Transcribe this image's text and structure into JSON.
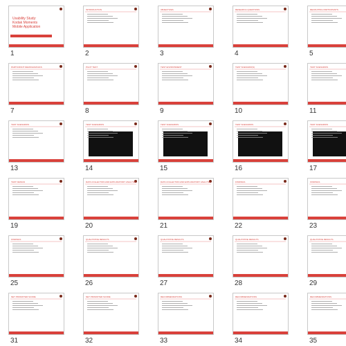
{
  "slides": [
    {
      "number": 1,
      "title": "Usability Study: Kodak Moments Mobile Application"
    },
    {
      "number": 2,
      "title": "INTRODUCTION"
    },
    {
      "number": 3,
      "title": "OBJECTIVES"
    },
    {
      "number": 4,
      "title": "RESEARCH QUESTIONS"
    },
    {
      "number": 5,
      "title": "RECRUITING PARTICIPANTS"
    },
    {
      "number": 7,
      "title": "PARTICIPANT DEMOGRAPHICS"
    },
    {
      "number": 8,
      "title": "PILOT TEST"
    },
    {
      "number": 9,
      "title": "TEST ENVIRONMENT"
    },
    {
      "number": 10,
      "title": "TEST SCENARIO(S)"
    },
    {
      "number": 11,
      "title": "TEST SCENARIOS"
    },
    {
      "number": 13,
      "title": "TEST SCENARIOS"
    },
    {
      "number": 14,
      "title": "TEST SCENARIOS",
      "video": true
    },
    {
      "number": 15,
      "title": "TEST SCENARIOS",
      "video": true
    },
    {
      "number": 16,
      "title": "TEST SCENARIOS",
      "video": true
    },
    {
      "number": 17,
      "title": "TEST SCENARIOS",
      "video": true
    },
    {
      "number": 19,
      "title": "TEST DESIGN"
    },
    {
      "number": 20,
      "title": "DATA COLLECTION AND EXPLORATORY ANALYSIS"
    },
    {
      "number": 21,
      "title": "DATA COLLECTION AND EXPLORATORY ANALYSIS"
    },
    {
      "number": 22,
      "title": "FINDINGS"
    },
    {
      "number": 23,
      "title": "FINDINGS"
    },
    {
      "number": 25,
      "title": "FINDINGS"
    },
    {
      "number": 26,
      "title": "QUALITATIVE RESULTS"
    },
    {
      "number": 27,
      "title": "QUALITATIVE RESULTS"
    },
    {
      "number": 28,
      "title": "QUALITATIVE RESULTS"
    },
    {
      "number": 29,
      "title": "QUALITATIVE RESULTS"
    },
    {
      "number": 31,
      "title": "NET PROMOTER SCORE"
    },
    {
      "number": 32,
      "title": "NET PROMOTER SCORE"
    },
    {
      "number": 33,
      "title": "RECOMMENDATIONS"
    },
    {
      "number": 34,
      "title": "RECOMMENDATIONS"
    },
    {
      "number": 35,
      "title": "RECOMMENDATIONS"
    }
  ]
}
